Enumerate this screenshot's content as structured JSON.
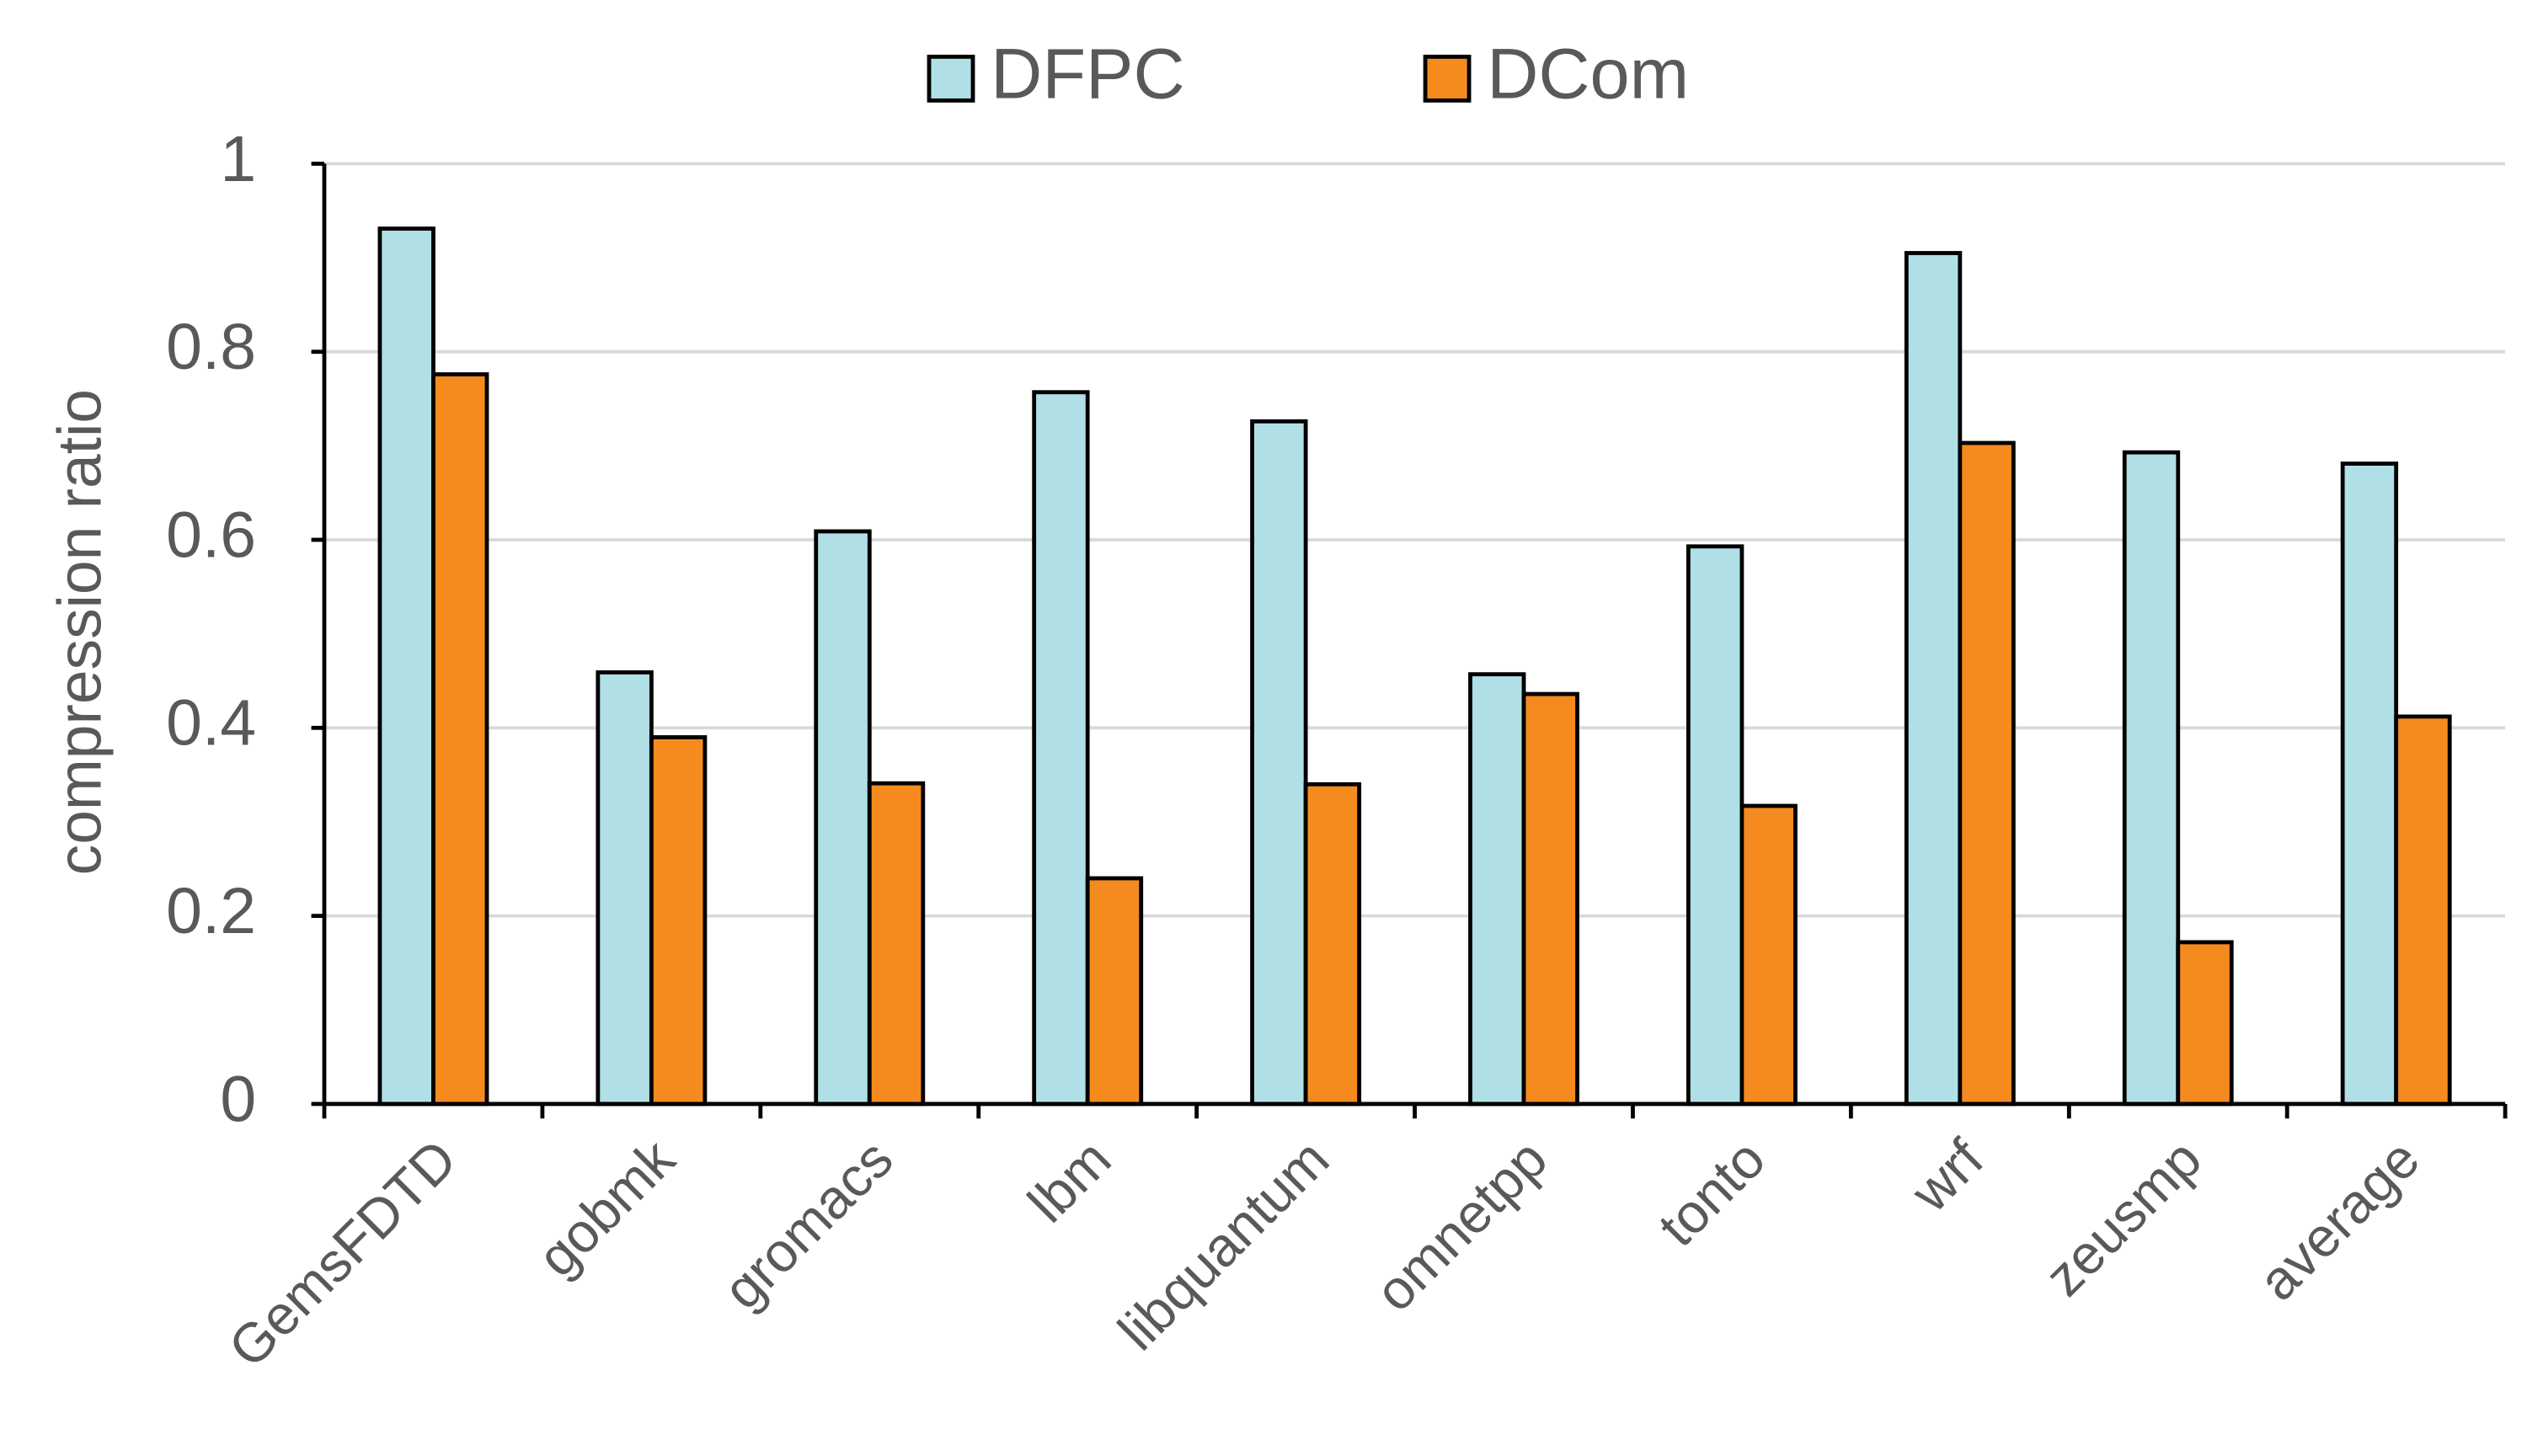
{
  "chart_data": {
    "type": "bar",
    "categories": [
      "GemsFDTD",
      "gobmk",
      "gromacs",
      "lbm",
      "libquantum",
      "omnetpp",
      "tonto",
      "wrf",
      "zeusmp",
      "average"
    ],
    "series": [
      {
        "name": "DFPC",
        "color": "#b0e0e6",
        "values": [
          0.931,
          0.459,
          0.609,
          0.757,
          0.726,
          0.457,
          0.593,
          0.905,
          0.693,
          0.681
        ]
      },
      {
        "name": "DCom",
        "color": "#f58b1f",
        "values": [
          0.776,
          0.39,
          0.341,
          0.24,
          0.34,
          0.436,
          0.317,
          0.703,
          0.172,
          0.412
        ]
      }
    ],
    "y_label": "compression ratio",
    "ylim": [
      0,
      1
    ],
    "yticks": [
      0,
      0.2,
      0.4,
      0.6,
      0.8,
      1
    ],
    "grid": true,
    "legend": "top"
  }
}
